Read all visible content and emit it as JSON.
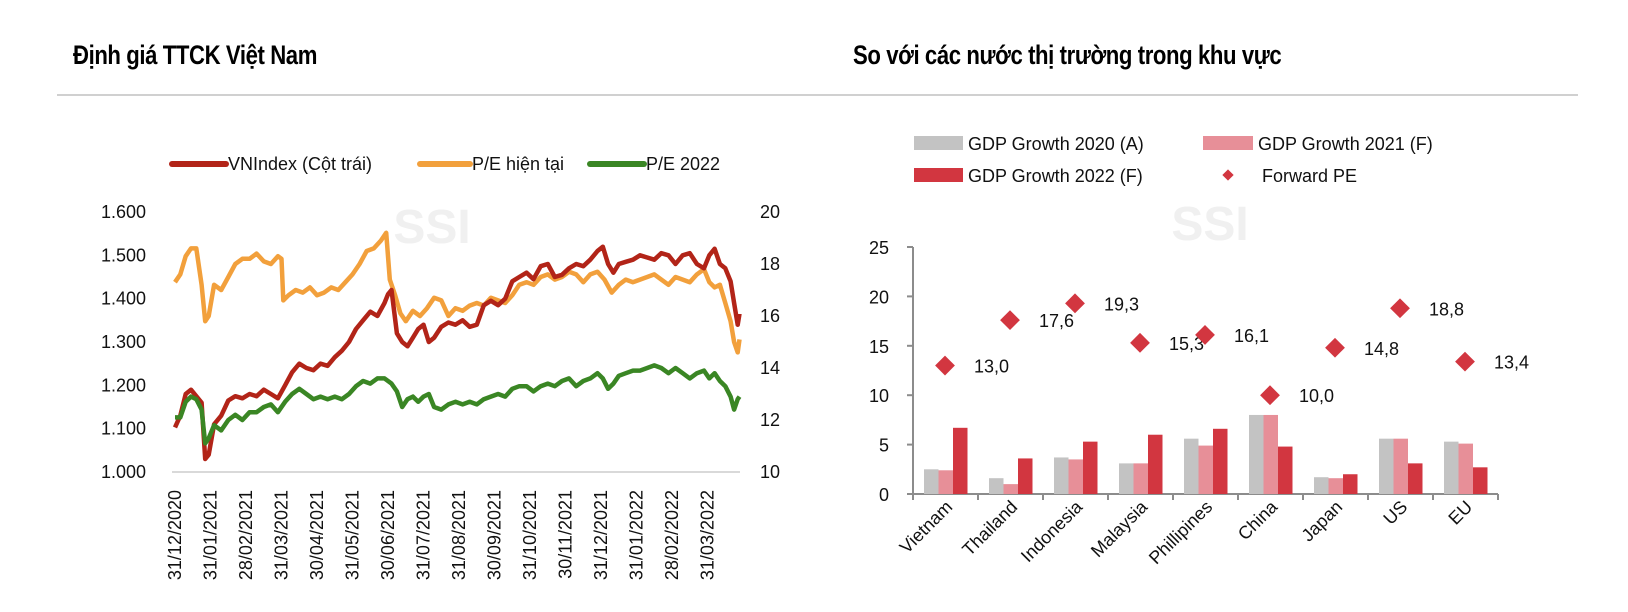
{
  "headers": {
    "left_title": "Định giá TTCK Việt Nam",
    "right_title": "So với các nước thị trường trong khu vực"
  },
  "watermark": "SSI",
  "colors": {
    "vnindex": "#b22418",
    "pe_current": "#f2a03c",
    "pe_2022": "#3a8624",
    "gdp2020": "#c3c3c3",
    "gdp2021": "#e78f98",
    "gdp2022": "#d23640",
    "forward_pe": "#d23640",
    "axis": "#8c8c8c",
    "grid": "#d9d9d9"
  },
  "chart_data": [
    {
      "type": "line",
      "title": "Định giá TTCK Việt Nam",
      "legend": [
        "VNIndex (Cột trái)",
        "P/E hiện tại",
        "P/E 2022"
      ],
      "legend_position": "top",
      "x_tick_labels": [
        "31/12/2020",
        "31/01/2021",
        "28/02/2021",
        "31/03/2021",
        "30/04/2021",
        "31/05/2021",
        "30/06/2021",
        "31/07/2021",
        "31/08/2021",
        "30/09/2021",
        "31/10/2021",
        "30/11/2021",
        "31/12/2021",
        "31/01/2022",
        "28/02/2022",
        "31/03/2022"
      ],
      "x_unit": "months since 31/12/2020",
      "x_range": [
        0,
        15.9
      ],
      "y_left": {
        "label": "VNIndex",
        "range": [
          1000,
          1600
        ],
        "ticks": [
          "1.000",
          "1.100",
          "1.200",
          "1.300",
          "1.400",
          "1.500",
          "1.600"
        ]
      },
      "y_right": {
        "label": "P/E",
        "range": [
          10,
          20
        ],
        "ticks": [
          "10",
          "12",
          "14",
          "16",
          "18",
          "20"
        ]
      },
      "series": [
        {
          "name": "VNIndex (Cột trái)",
          "axis": "left",
          "x": [
            0,
            0.15,
            0.3,
            0.45,
            0.6,
            0.75,
            0.85,
            0.95,
            1.1,
            1.3,
            1.5,
            1.7,
            1.9,
            2.1,
            2.3,
            2.5,
            2.7,
            2.9,
            3.1,
            3.3,
            3.5,
            3.7,
            3.9,
            4.1,
            4.3,
            4.5,
            4.7,
            4.9,
            5.1,
            5.3,
            5.5,
            5.7,
            5.9,
            6.0,
            6.1,
            6.25,
            6.4,
            6.55,
            6.7,
            6.85,
            7.0,
            7.15,
            7.3,
            7.5,
            7.7,
            7.9,
            8.1,
            8.3,
            8.5,
            8.7,
            8.9,
            9.1,
            9.3,
            9.5,
            9.7,
            9.9,
            10.1,
            10.3,
            10.5,
            10.7,
            10.9,
            11.1,
            11.3,
            11.5,
            11.7,
            11.9,
            12.05,
            12.2,
            12.35,
            12.5,
            12.7,
            12.9,
            13.1,
            13.3,
            13.5,
            13.7,
            13.9,
            14.1,
            14.3,
            14.5,
            14.7,
            14.9,
            15.05,
            15.2,
            15.35,
            15.5,
            15.65,
            15.75,
            15.85,
            15.9
          ],
          "values": [
            1103,
            1130,
            1180,
            1190,
            1175,
            1160,
            1030,
            1040,
            1110,
            1130,
            1165,
            1175,
            1170,
            1180,
            1175,
            1190,
            1180,
            1170,
            1200,
            1230,
            1250,
            1240,
            1235,
            1250,
            1245,
            1265,
            1280,
            1300,
            1330,
            1350,
            1370,
            1360,
            1390,
            1410,
            1420,
            1320,
            1300,
            1290,
            1310,
            1330,
            1340,
            1300,
            1310,
            1335,
            1345,
            1340,
            1350,
            1335,
            1340,
            1385,
            1395,
            1385,
            1400,
            1440,
            1450,
            1460,
            1445,
            1475,
            1480,
            1450,
            1455,
            1470,
            1480,
            1475,
            1490,
            1510,
            1520,
            1480,
            1460,
            1480,
            1485,
            1490,
            1500,
            1495,
            1490,
            1505,
            1500,
            1480,
            1500,
            1505,
            1480,
            1470,
            1500,
            1515,
            1480,
            1470,
            1440,
            1390,
            1340,
            1365
          ]
        },
        {
          "name": "P/E hiện tại",
          "axis": "right",
          "x": [
            0,
            0.15,
            0.3,
            0.45,
            0.6,
            0.75,
            0.85,
            0.95,
            1.1,
            1.3,
            1.5,
            1.7,
            1.9,
            2.1,
            2.3,
            2.5,
            2.7,
            2.9,
            3.0,
            3.05,
            3.2,
            3.4,
            3.6,
            3.8,
            4.0,
            4.2,
            4.4,
            4.6,
            4.8,
            5.0,
            5.2,
            5.4,
            5.6,
            5.8,
            5.95,
            6.05,
            6.2,
            6.35,
            6.5,
            6.7,
            6.9,
            7.1,
            7.3,
            7.5,
            7.7,
            7.9,
            8.1,
            8.3,
            8.5,
            8.7,
            8.9,
            9.1,
            9.3,
            9.5,
            9.7,
            9.9,
            10.1,
            10.3,
            10.5,
            10.7,
            10.9,
            11.1,
            11.3,
            11.5,
            11.7,
            11.9,
            12.1,
            12.3,
            12.5,
            12.7,
            12.9,
            13.1,
            13.3,
            13.5,
            13.7,
            13.9,
            14.1,
            14.3,
            14.5,
            14.7,
            14.9,
            15.05,
            15.2,
            15.35,
            15.5,
            15.65,
            15.75,
            15.85,
            15.9
          ],
          "values": [
            17.3,
            17.6,
            18.3,
            18.6,
            18.6,
            17.2,
            15.8,
            16.0,
            17.2,
            17.0,
            17.5,
            18.0,
            18.2,
            18.2,
            18.4,
            18.1,
            18.0,
            18.3,
            18.2,
            16.6,
            16.8,
            17.0,
            16.9,
            17.1,
            16.8,
            16.9,
            17.1,
            17.0,
            17.3,
            17.6,
            18.0,
            18.5,
            18.6,
            18.9,
            19.2,
            17.4,
            16.8,
            16.1,
            15.8,
            16.2,
            16.0,
            16.3,
            16.7,
            16.6,
            16.0,
            16.3,
            16.2,
            16.4,
            16.5,
            16.4,
            16.7,
            16.6,
            16.5,
            16.8,
            17.2,
            17.3,
            17.2,
            17.5,
            17.6,
            17.4,
            17.5,
            17.7,
            17.6,
            17.3,
            17.6,
            17.7,
            17.4,
            16.9,
            17.2,
            17.4,
            17.3,
            17.4,
            17.5,
            17.6,
            17.4,
            17.2,
            17.5,
            17.4,
            17.3,
            17.6,
            17.8,
            17.3,
            17.1,
            17.2,
            16.5,
            15.8,
            15.0,
            14.6,
            15.1
          ]
        },
        {
          "name": "P/E 2022",
          "axis": "right",
          "x": [
            0,
            0.15,
            0.3,
            0.45,
            0.6,
            0.75,
            0.85,
            0.95,
            1.1,
            1.3,
            1.5,
            1.7,
            1.9,
            2.1,
            2.3,
            2.5,
            2.7,
            2.9,
            3.1,
            3.3,
            3.5,
            3.7,
            3.9,
            4.1,
            4.3,
            4.5,
            4.7,
            4.9,
            5.1,
            5.3,
            5.5,
            5.7,
            5.9,
            6.1,
            6.25,
            6.4,
            6.55,
            6.7,
            6.85,
            7.0,
            7.15,
            7.3,
            7.5,
            7.7,
            7.9,
            8.1,
            8.3,
            8.5,
            8.7,
            8.9,
            9.1,
            9.3,
            9.5,
            9.7,
            9.9,
            10.1,
            10.3,
            10.5,
            10.7,
            10.9,
            11.1,
            11.3,
            11.5,
            11.7,
            11.9,
            12.05,
            12.2,
            12.35,
            12.5,
            12.7,
            12.9,
            13.1,
            13.3,
            13.5,
            13.7,
            13.9,
            14.1,
            14.3,
            14.5,
            14.7,
            14.9,
            15.05,
            15.2,
            15.35,
            15.5,
            15.65,
            15.75,
            15.85,
            15.9
          ],
          "values": [
            12.1,
            12.1,
            12.7,
            12.9,
            12.8,
            12.4,
            11.1,
            11.3,
            11.8,
            11.6,
            12.0,
            12.2,
            12.0,
            12.3,
            12.3,
            12.5,
            12.6,
            12.3,
            12.7,
            13.0,
            13.2,
            13.0,
            12.8,
            12.9,
            12.8,
            12.9,
            12.8,
            13.0,
            13.3,
            13.5,
            13.4,
            13.6,
            13.6,
            13.4,
            13.1,
            12.5,
            12.8,
            12.9,
            12.7,
            12.9,
            13.0,
            12.5,
            12.4,
            12.6,
            12.7,
            12.6,
            12.7,
            12.6,
            12.8,
            12.9,
            13.0,
            12.9,
            13.2,
            13.3,
            13.3,
            13.1,
            13.3,
            13.4,
            13.3,
            13.5,
            13.6,
            13.3,
            13.5,
            13.6,
            13.8,
            13.6,
            13.2,
            13.4,
            13.7,
            13.8,
            13.9,
            13.9,
            14.0,
            14.1,
            14.0,
            13.8,
            14.0,
            13.8,
            13.6,
            13.8,
            13.9,
            13.6,
            13.8,
            13.5,
            13.3,
            12.9,
            12.4,
            12.8,
            12.9
          ]
        }
      ]
    },
    {
      "type": "bar",
      "title": "So với các nước thị trường trong khu vực",
      "categories": [
        "Vietnam",
        "Thailand",
        "Indonesia",
        "Malaysia",
        "Phillipines",
        "China",
        "Japan",
        "US",
        "EU"
      ],
      "ylim": [
        0,
        25
      ],
      "y_ticks": [
        "0",
        "5",
        "10",
        "15",
        "20",
        "25"
      ],
      "legend_position": "top",
      "series": [
        {
          "name": "GDP Growth 2020 (A)",
          "kind": "bar",
          "values": [
            2.5,
            1.6,
            3.7,
            3.1,
            5.6,
            8.0,
            1.7,
            5.6,
            5.3
          ]
        },
        {
          "name": "GDP Growth 2021 (F)",
          "kind": "bar",
          "values": [
            2.4,
            1.0,
            3.5,
            3.1,
            4.9,
            8.0,
            1.6,
            5.6,
            5.1
          ]
        },
        {
          "name": "GDP Growth 2022 (F)",
          "kind": "bar",
          "values": [
            6.7,
            3.6,
            5.3,
            6.0,
            6.6,
            4.8,
            2.0,
            3.1,
            2.7
          ]
        },
        {
          "name": "Forward PE",
          "kind": "marker",
          "values": [
            13.0,
            17.6,
            19.3,
            15.3,
            16.1,
            10.0,
            14.8,
            18.8,
            13.4
          ],
          "data_labels": [
            "13,0",
            "17,6",
            "19,3",
            "15,3",
            "16,1",
            "10,0",
            "14,8",
            "18,8",
            "13,4"
          ]
        }
      ]
    }
  ]
}
